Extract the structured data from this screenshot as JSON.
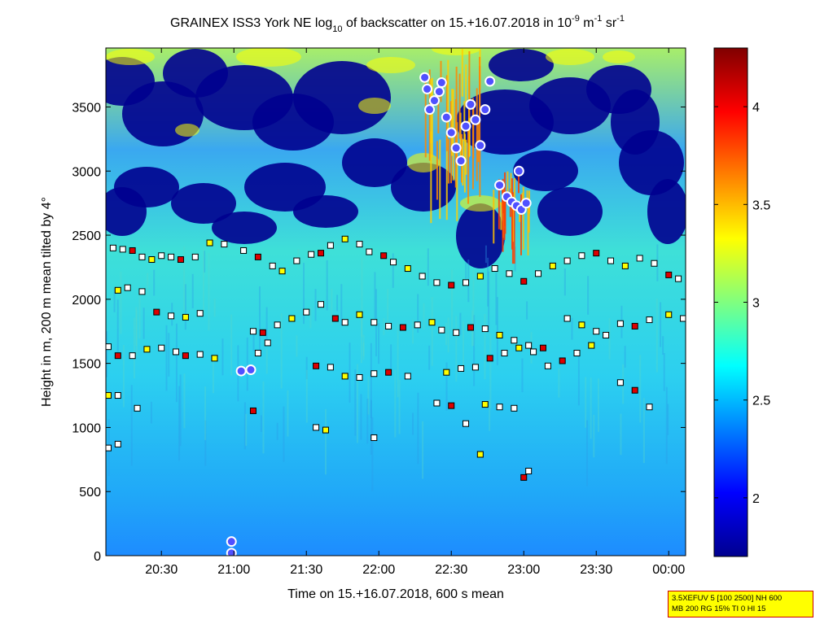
{
  "chart_data": {
    "type": "heatmap",
    "title": {
      "pre": "GRAINEX ISS3 York NE log",
      "sub10": "10",
      "mid": " of backscatter on 15.+16.07.2018 in 10",
      "supNeg9": "-9",
      "m": " m",
      "supNeg1a": "-1",
      "sr": " sr",
      "supNeg1b": "-1"
    },
    "xlabel": "Time on 15.+16.07.2018, 600 s mean",
    "ylabel": "Height in m, 200 m mean tilted by 4°",
    "xlim": [
      "20:07",
      "00:07"
    ],
    "ylim": [
      0,
      3960
    ],
    "x_ticks": [
      {
        "label": "20:30",
        "min": 30
      },
      {
        "label": "21:00",
        "min": 60
      },
      {
        "label": "21:30",
        "min": 90
      },
      {
        "label": "22:00",
        "min": 120
      },
      {
        "label": "22:30",
        "min": 150
      },
      {
        "label": "23:00",
        "min": 180
      },
      {
        "label": "23:30",
        "min": 210
      },
      {
        "label": "00:00",
        "min": 240
      }
    ],
    "y_ticks": [
      "0",
      "500",
      "1000",
      "1500",
      "2000",
      "2500",
      "3000",
      "3500"
    ],
    "colorbar": {
      "range": [
        1.7,
        4.3
      ],
      "ticks": [
        "2",
        "2.5",
        "3",
        "3.5",
        "4"
      ],
      "colormap": "jet"
    },
    "colors": {
      "low": "#00008f",
      "mid_low": "#0080ff",
      "mid": "#40e0d0",
      "mid_high": "#ffff00",
      "high": "#ff0000",
      "max": "#800000",
      "marker_fill_white": "#ffffff",
      "marker_fill_red": "#dd0000",
      "marker_fill_yellow": "#ffff00",
      "circle_marker": "#5050ff"
    },
    "series": [
      {
        "type": "square-markers",
        "values": [
          {
            "t": "20:10",
            "h": 2400
          },
          {
            "t": "20:14",
            "h": 2390
          },
          {
            "t": "20:18",
            "h": 2380
          },
          {
            "t": "20:22",
            "h": 2330
          },
          {
            "t": "20:26",
            "h": 2310
          },
          {
            "t": "20:30",
            "h": 2340
          },
          {
            "t": "20:34",
            "h": 2330
          },
          {
            "t": "20:38",
            "h": 2310
          },
          {
            "t": "20:44",
            "h": 2330
          },
          {
            "t": "20:50",
            "h": 2440
          },
          {
            "t": "20:56",
            "h": 2430
          },
          {
            "t": "21:04",
            "h": 2380
          },
          {
            "t": "21:10",
            "h": 2330
          },
          {
            "t": "21:16",
            "h": 2260
          },
          {
            "t": "21:20",
            "h": 2220
          },
          {
            "t": "21:26",
            "h": 2300
          },
          {
            "t": "21:32",
            "h": 2350
          },
          {
            "t": "21:36",
            "h": 2360
          },
          {
            "t": "21:40",
            "h": 2420
          },
          {
            "t": "21:46",
            "h": 2470
          },
          {
            "t": "21:52",
            "h": 2430
          },
          {
            "t": "21:56",
            "h": 2370
          },
          {
            "t": "22:02",
            "h": 2340
          },
          {
            "t": "22:06",
            "h": 2290
          },
          {
            "t": "22:12",
            "h": 2240
          },
          {
            "t": "22:18",
            "h": 2180
          },
          {
            "t": "22:24",
            "h": 2130
          },
          {
            "t": "22:30",
            "h": 2110
          },
          {
            "t": "22:36",
            "h": 2130
          },
          {
            "t": "22:42",
            "h": 2180
          },
          {
            "t": "22:48",
            "h": 2240
          },
          {
            "t": "22:54",
            "h": 2200
          },
          {
            "t": "23:00",
            "h": 2140
          },
          {
            "t": "23:06",
            "h": 2200
          },
          {
            "t": "23:12",
            "h": 2260
          },
          {
            "t": "23:18",
            "h": 2300
          },
          {
            "t": "23:24",
            "h": 2340
          },
          {
            "t": "23:30",
            "h": 2360
          },
          {
            "t": "23:36",
            "h": 2300
          },
          {
            "t": "23:42",
            "h": 2260
          },
          {
            "t": "23:48",
            "h": 2320
          },
          {
            "t": "23:54",
            "h": 2280
          },
          {
            "t": "00:00",
            "h": 2190
          },
          {
            "t": "00:04",
            "h": 2160
          },
          {
            "t": "20:12",
            "h": 2070
          },
          {
            "t": "20:16",
            "h": 2090
          },
          {
            "t": "20:22",
            "h": 2060
          },
          {
            "t": "20:28",
            "h": 1900
          },
          {
            "t": "20:34",
            "h": 1870
          },
          {
            "t": "20:40",
            "h": 1860
          },
          {
            "t": "20:46",
            "h": 1890
          },
          {
            "t": "21:08",
            "h": 1750
          },
          {
            "t": "21:12",
            "h": 1740
          },
          {
            "t": "21:18",
            "h": 1800
          },
          {
            "t": "21:24",
            "h": 1850
          },
          {
            "t": "21:30",
            "h": 1900
          },
          {
            "t": "21:36",
            "h": 1960
          },
          {
            "t": "21:42",
            "h": 1850
          },
          {
            "t": "21:46",
            "h": 1820
          },
          {
            "t": "21:52",
            "h": 1880
          },
          {
            "t": "21:58",
            "h": 1820
          },
          {
            "t": "22:04",
            "h": 1790
          },
          {
            "t": "22:10",
            "h": 1780
          },
          {
            "t": "22:16",
            "h": 1800
          },
          {
            "t": "22:22",
            "h": 1820
          },
          {
            "t": "22:26",
            "h": 1760
          },
          {
            "t": "22:32",
            "h": 1740
          },
          {
            "t": "22:38",
            "h": 1780
          },
          {
            "t": "22:44",
            "h": 1770
          },
          {
            "t": "22:50",
            "h": 1720
          },
          {
            "t": "22:56",
            "h": 1680
          },
          {
            "t": "23:02",
            "h": 1640
          },
          {
            "t": "23:08",
            "h": 1620
          },
          {
            "t": "23:18",
            "h": 1850
          },
          {
            "t": "23:24",
            "h": 1800
          },
          {
            "t": "23:30",
            "h": 1750
          },
          {
            "t": "23:40",
            "h": 1810
          },
          {
            "t": "23:46",
            "h": 1790
          },
          {
            "t": "23:52",
            "h": 1840
          },
          {
            "t": "00:00",
            "h": 1880
          },
          {
            "t": "00:06",
            "h": 1850
          },
          {
            "t": "20:08",
            "h": 1630
          },
          {
            "t": "20:12",
            "h": 1560
          },
          {
            "t": "20:18",
            "h": 1560
          },
          {
            "t": "20:24",
            "h": 1610
          },
          {
            "t": "20:30",
            "h": 1620
          },
          {
            "t": "20:36",
            "h": 1590
          },
          {
            "t": "20:40",
            "h": 1560
          },
          {
            "t": "20:46",
            "h": 1570
          },
          {
            "t": "20:52",
            "h": 1540
          },
          {
            "t": "21:10",
            "h": 1580
          },
          {
            "t": "21:14",
            "h": 1660
          },
          {
            "t": "21:34",
            "h": 1480
          },
          {
            "t": "21:40",
            "h": 1470
          },
          {
            "t": "21:46",
            "h": 1400
          },
          {
            "t": "21:52",
            "h": 1390
          },
          {
            "t": "21:58",
            "h": 1420
          },
          {
            "t": "22:04",
            "h": 1430
          },
          {
            "t": "22:12",
            "h": 1400
          },
          {
            "t": "22:28",
            "h": 1430
          },
          {
            "t": "22:34",
            "h": 1460
          },
          {
            "t": "22:40",
            "h": 1470
          },
          {
            "t": "22:46",
            "h": 1540
          },
          {
            "t": "22:52",
            "h": 1580
          },
          {
            "t": "22:58",
            "h": 1620
          },
          {
            "t": "23:04",
            "h": 1590
          },
          {
            "t": "23:10",
            "h": 1480
          },
          {
            "t": "23:16",
            "h": 1520
          },
          {
            "t": "23:22",
            "h": 1580
          },
          {
            "t": "23:28",
            "h": 1640
          },
          {
            "t": "23:34",
            "h": 1720
          },
          {
            "t": "23:40",
            "h": 1350
          },
          {
            "t": "23:46",
            "h": 1290
          },
          {
            "t": "23:52",
            "h": 1160
          },
          {
            "t": "20:08",
            "h": 1250
          },
          {
            "t": "20:12",
            "h": 1250
          },
          {
            "t": "20:20",
            "h": 1150
          },
          {
            "t": "21:08",
            "h": 1130
          },
          {
            "t": "21:34",
            "h": 1000
          },
          {
            "t": "21:38",
            "h": 980
          },
          {
            "t": "21:58",
            "h": 920
          },
          {
            "t": "22:24",
            "h": 1190
          },
          {
            "t": "22:30",
            "h": 1170
          },
          {
            "t": "22:36",
            "h": 1030
          },
          {
            "t": "22:44",
            "h": 1180
          },
          {
            "t": "22:50",
            "h": 1160
          },
          {
            "t": "22:56",
            "h": 1150
          },
          {
            "t": "23:00",
            "h": 610
          },
          {
            "t": "23:02",
            "h": 660
          },
          {
            "t": "22:42",
            "h": 790
          },
          {
            "t": "20:08",
            "h": 840
          },
          {
            "t": "20:12",
            "h": 870
          }
        ]
      },
      {
        "type": "circle-markers",
        "values": [
          {
            "t": "21:03",
            "h": 1440
          },
          {
            "t": "21:07",
            "h": 1450
          },
          {
            "t": "20:59",
            "h": 110
          },
          {
            "t": "20:59",
            "h": 20
          },
          {
            "t": "22:19",
            "h": 3730
          },
          {
            "t": "22:20",
            "h": 3640
          },
          {
            "t": "22:21",
            "h": 3480
          },
          {
            "t": "22:23",
            "h": 3550
          },
          {
            "t": "22:25",
            "h": 3620
          },
          {
            "t": "22:26",
            "h": 3690
          },
          {
            "t": "22:28",
            "h": 3420
          },
          {
            "t": "22:30",
            "h": 3300
          },
          {
            "t": "22:32",
            "h": 3180
          },
          {
            "t": "22:34",
            "h": 3080
          },
          {
            "t": "22:36",
            "h": 3350
          },
          {
            "t": "22:38",
            "h": 3520
          },
          {
            "t": "22:40",
            "h": 3400
          },
          {
            "t": "22:42",
            "h": 3200
          },
          {
            "t": "22:44",
            "h": 3480
          },
          {
            "t": "22:46",
            "h": 3700
          },
          {
            "t": "22:50",
            "h": 2890
          },
          {
            "t": "22:53",
            "h": 2800
          },
          {
            "t": "22:55",
            "h": 2760
          },
          {
            "t": "22:57",
            "h": 2730
          },
          {
            "t": "22:59",
            "h": 2700
          },
          {
            "t": "23:01",
            "h": 2750
          },
          {
            "t": "22:58",
            "h": 3000
          }
        ]
      }
    ]
  },
  "info_box": {
    "line1": "3.5XEFUV 5 [100 2500] NH 600",
    "line2": "MB 200 RG 15% TI 0 HI 15"
  }
}
